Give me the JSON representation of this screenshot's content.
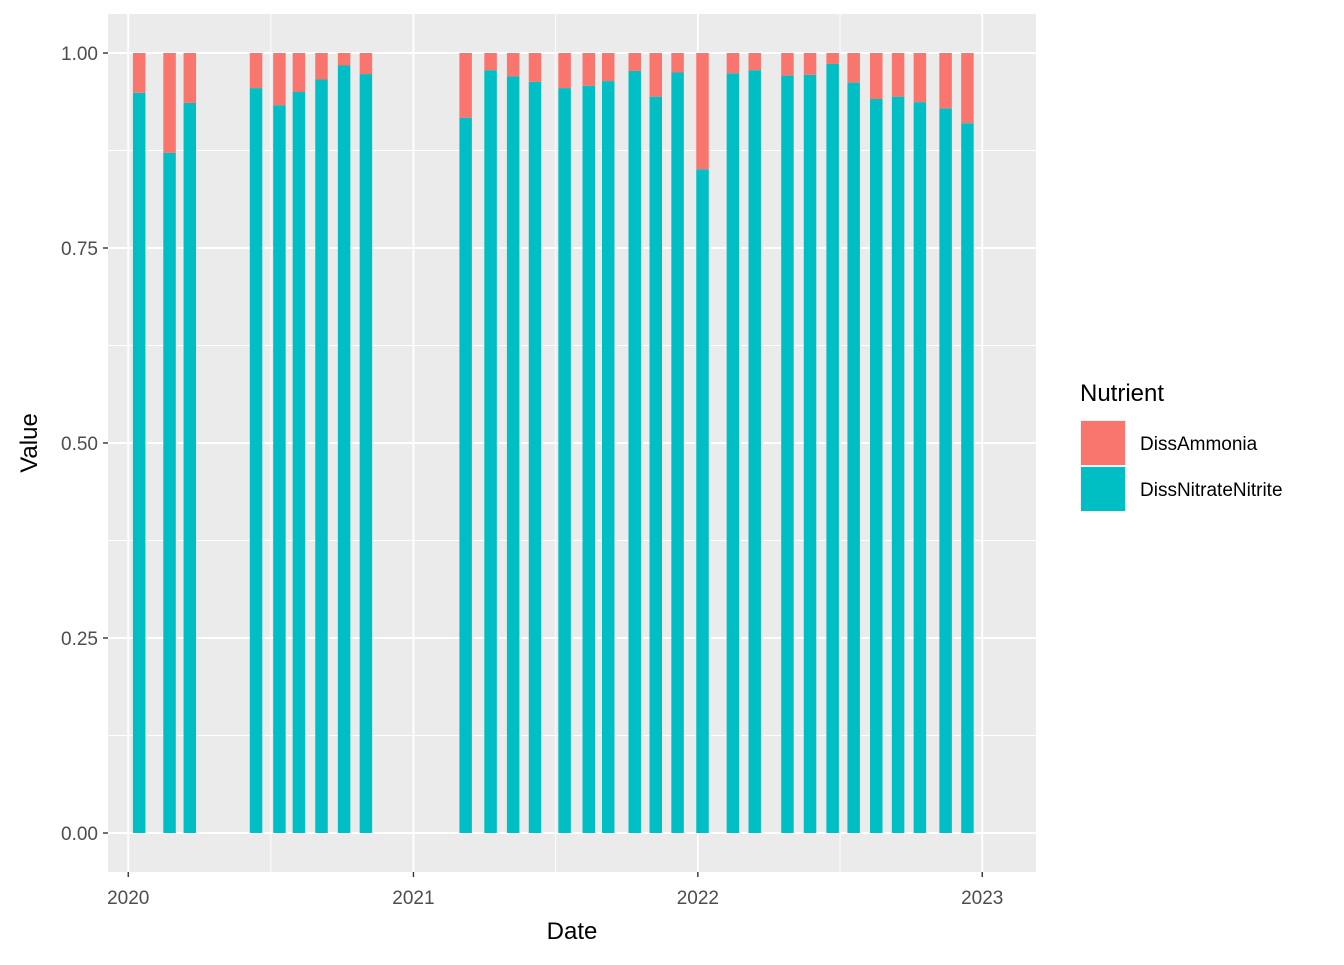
{
  "chart_data": {
    "type": "bar",
    "stacked": true,
    "xlabel": "Date",
    "ylabel": "Value",
    "x_ticks": [
      "2020",
      "2021",
      "2022",
      "2023"
    ],
    "y_ticks": [
      "0.00",
      "0.25",
      "0.50",
      "0.75",
      "1.00"
    ],
    "xlim": [
      "2019-12-06",
      "2023-03-11"
    ],
    "ylim": [
      -0.05,
      1.05
    ],
    "grid": true,
    "legend_title": "Nutrient",
    "legend_position": "right",
    "colors": {
      "DissAmmonia": "#F8766D",
      "DissNitrateNitrite": "#00BFC4"
    },
    "series": [
      {
        "name": "DissNitrateNitrite"
      },
      {
        "name": "DissAmmonia"
      }
    ],
    "bars": [
      {
        "date": "2020-01-15",
        "DissNitrateNitrite": 0.949,
        "DissAmmonia": 0.051
      },
      {
        "date": "2020-02-23",
        "DissNitrateNitrite": 0.872,
        "DissAmmonia": 0.128
      },
      {
        "date": "2020-03-20",
        "DissNitrateNitrite": 0.936,
        "DissAmmonia": 0.064
      },
      {
        "date": "2020-06-13",
        "DissNitrateNitrite": 0.955,
        "DissAmmonia": 0.045
      },
      {
        "date": "2020-07-13",
        "DissNitrateNitrite": 0.933,
        "DissAmmonia": 0.067
      },
      {
        "date": "2020-08-07",
        "DissNitrateNitrite": 0.95,
        "DissAmmonia": 0.05
      },
      {
        "date": "2020-09-05",
        "DissNitrateNitrite": 0.966,
        "DissAmmonia": 0.034
      },
      {
        "date": "2020-10-04",
        "DissNitrateNitrite": 0.984,
        "DissAmmonia": 0.016
      },
      {
        "date": "2020-11-01",
        "DissNitrateNitrite": 0.973,
        "DissAmmonia": 0.027
      },
      {
        "date": "2021-03-09",
        "DissNitrateNitrite": 0.917,
        "DissAmmonia": 0.083
      },
      {
        "date": "2021-04-10",
        "DissNitrateNitrite": 0.978,
        "DissAmmonia": 0.022
      },
      {
        "date": "2021-05-09",
        "DissNitrateNitrite": 0.97,
        "DissAmmonia": 0.03
      },
      {
        "date": "2021-06-06",
        "DissNitrateNitrite": 0.963,
        "DissAmmonia": 0.037
      },
      {
        "date": "2021-07-14",
        "DissNitrateNitrite": 0.955,
        "DissAmmonia": 0.045
      },
      {
        "date": "2021-08-14",
        "DissNitrateNitrite": 0.958,
        "DissAmmonia": 0.042
      },
      {
        "date": "2021-09-08",
        "DissNitrateNitrite": 0.964,
        "DissAmmonia": 0.036
      },
      {
        "date": "2021-10-12",
        "DissNitrateNitrite": 0.977,
        "DissAmmonia": 0.023
      },
      {
        "date": "2021-11-08",
        "DissNitrateNitrite": 0.944,
        "DissAmmonia": 0.056
      },
      {
        "date": "2021-12-06",
        "DissNitrateNitrite": 0.975,
        "DissAmmonia": 0.025
      },
      {
        "date": "2022-01-07",
        "DissNitrateNitrite": 0.851,
        "DissAmmonia": 0.149
      },
      {
        "date": "2022-02-15",
        "DissNitrateNitrite": 0.974,
        "DissAmmonia": 0.026
      },
      {
        "date": "2022-03-15",
        "DissNitrateNitrite": 0.978,
        "DissAmmonia": 0.022
      },
      {
        "date": "2022-04-26",
        "DissNitrateNitrite": 0.971,
        "DissAmmonia": 0.029
      },
      {
        "date": "2022-05-25",
        "DissNitrateNitrite": 0.972,
        "DissAmmonia": 0.028
      },
      {
        "date": "2022-06-23",
        "DissNitrateNitrite": 0.986,
        "DissAmmonia": 0.014
      },
      {
        "date": "2022-07-20",
        "DissNitrateNitrite": 0.962,
        "DissAmmonia": 0.038
      },
      {
        "date": "2022-08-18",
        "DissNitrateNitrite": 0.941,
        "DissAmmonia": 0.059
      },
      {
        "date": "2022-09-15",
        "DissNitrateNitrite": 0.944,
        "DissAmmonia": 0.056
      },
      {
        "date": "2022-10-13",
        "DissNitrateNitrite": 0.937,
        "DissAmmonia": 0.063
      },
      {
        "date": "2022-11-15",
        "DissNitrateNitrite": 0.929,
        "DissAmmonia": 0.071
      },
      {
        "date": "2022-12-13",
        "DissNitrateNitrite": 0.91,
        "DissAmmonia": 0.09
      }
    ]
  }
}
